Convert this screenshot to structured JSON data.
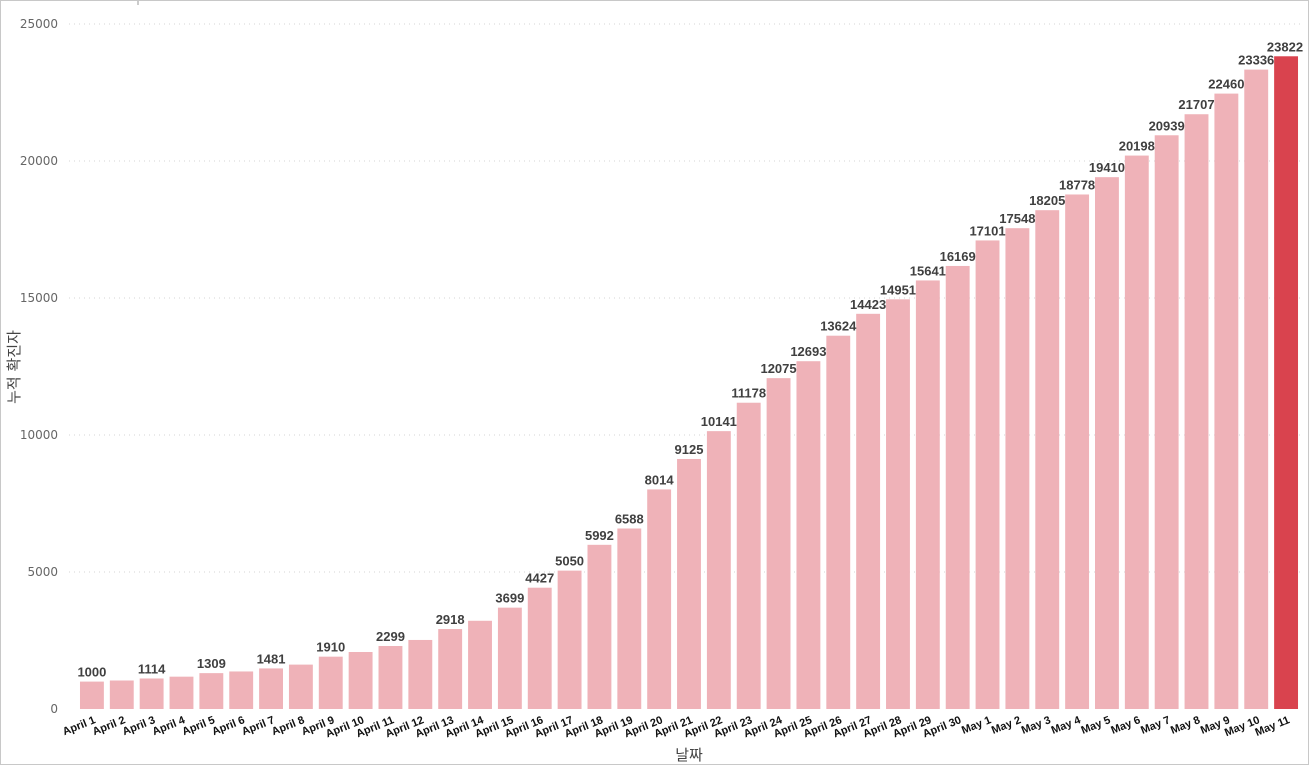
{
  "chart_data": {
    "type": "bar",
    "title": "",
    "xlabel": "날짜",
    "ylabel": "누적 확진자",
    "ylim": [
      0,
      25000
    ],
    "yticks": [
      0,
      5000,
      10000,
      15000,
      20000,
      25000
    ],
    "grid": true,
    "colors": {
      "bar": "#efb2b8",
      "highlight": "#d9434e"
    },
    "highlight_index": 40,
    "categories": [
      "April 1",
      "April 2",
      "April 3",
      "April 4",
      "April 5",
      "April 6",
      "April 7",
      "April 8",
      "April 9",
      "April 10",
      "April 11",
      "April 12",
      "April 13",
      "April 14",
      "April 15",
      "April 16",
      "April 17",
      "April 18",
      "April 19",
      "April 20",
      "April 21",
      "April 22",
      "April 23",
      "April 24",
      "April 25",
      "April 26",
      "April 27",
      "April 28",
      "April 29",
      "April 30",
      "May 1",
      "May 2",
      "May 3",
      "May 4",
      "May 5",
      "May 6",
      "May 7",
      "May 8",
      "May 9",
      "May 10",
      "May 11"
    ],
    "values": [
      1000,
      1040,
      1114,
      1180,
      1309,
      1370,
      1481,
      1620,
      1910,
      2080,
      2299,
      2520,
      2918,
      3220,
      3699,
      4427,
      5050,
      5992,
      6588,
      8014,
      9125,
      10141,
      11178,
      12075,
      12693,
      13624,
      14423,
      14951,
      15641,
      16169,
      17101,
      17548,
      18205,
      18778,
      19410,
      20198,
      20939,
      21707,
      22460,
      23336,
      23822
    ],
    "data_labels": [
      "1000",
      null,
      "1114",
      null,
      "1309",
      null,
      "1481",
      null,
      "1910",
      null,
      "2299",
      null,
      "2918",
      null,
      "3699",
      "4427",
      "5050",
      "5992",
      "6588",
      "8014",
      "9125",
      "10141",
      "11178",
      "12075",
      "12693",
      "13624",
      "14423",
      "14951",
      "15641",
      "16169",
      "17101",
      "17548",
      "18205",
      "18778",
      "19410",
      "20198",
      "20939",
      "21707",
      "22460",
      "23336",
      "23822"
    ]
  }
}
